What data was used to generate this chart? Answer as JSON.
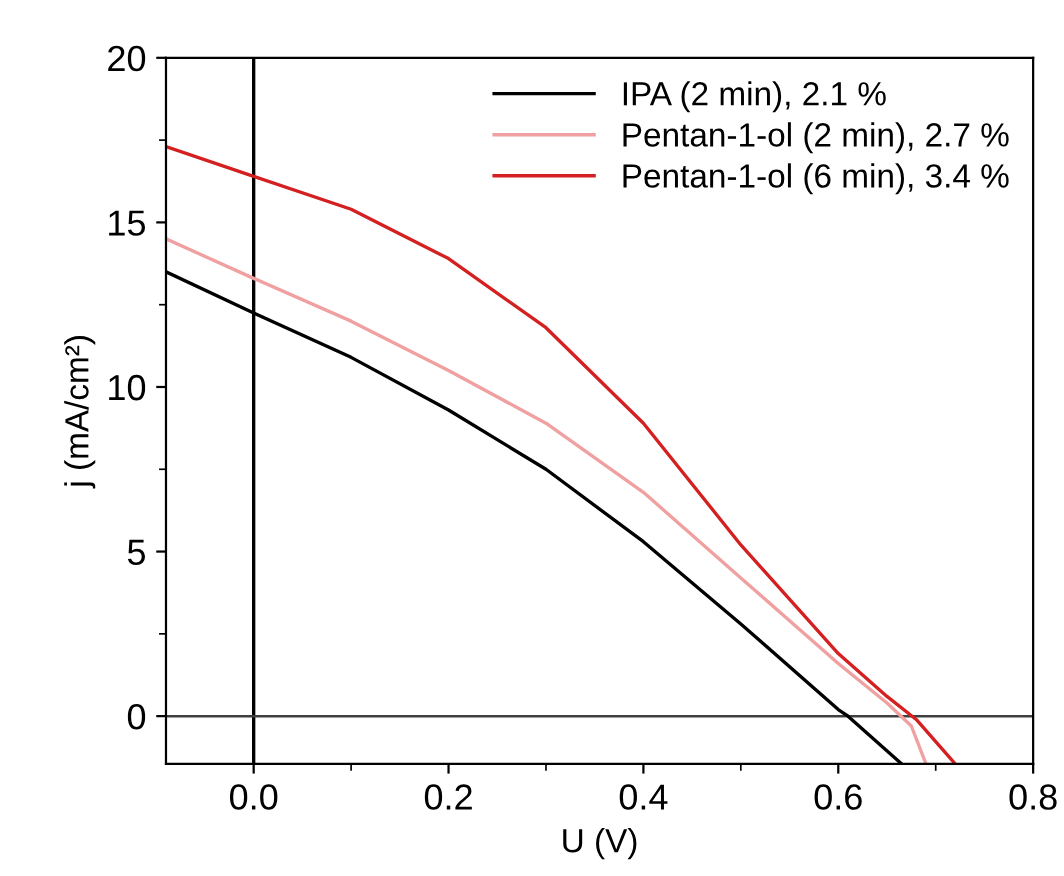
{
  "chart_data": {
    "type": "line",
    "xlabel": "U (V)",
    "ylabel": "j (mA/cm²)",
    "xlim": [
      -0.09,
      0.8
    ],
    "xticks": [
      {
        "value": 0,
        "label": "0.0"
      },
      0.2,
      0.4,
      0.6,
      0.8
    ],
    "ylim": [
      -1.45,
      20
    ],
    "yticks": [
      0,
      5,
      10,
      15,
      20
    ],
    "grid": false,
    "legend": "top right",
    "marker": "none",
    "line_style": "solid",
    "ref_lines": [
      {
        "axis": "x",
        "value": 0,
        "color": "#000000"
      },
      {
        "axis": "y",
        "value": 0,
        "color": "#404040"
      }
    ],
    "series": [
      {
        "name": "IPA (2 min), 2.1 %",
        "color": "#000000",
        "x": [
          -0.09,
          0,
          0.1,
          0.2,
          0.3,
          0.4,
          0.5,
          0.6,
          0.61,
          0.665
        ],
        "values": [
          13.5,
          12.25,
          10.9,
          9.3,
          7.5,
          5.3,
          2.8,
          0.2,
          0,
          -1.45
        ]
      },
      {
        "name": "Pentan-1-ol (2 min), 2.7 %",
        "color": "#f0a0a0",
        "x": [
          -0.09,
          0,
          0.1,
          0.2,
          0.3,
          0.4,
          0.5,
          0.6,
          0.65,
          0.675,
          0.69
        ],
        "values": [
          14.5,
          13.3,
          12.0,
          10.5,
          8.9,
          6.8,
          4.2,
          1.6,
          0.4,
          -0.3,
          -1.45
        ]
      },
      {
        "name": "Pentan-1-ol (6 min), 3.4 %",
        "color": "#d42020",
        "x": [
          -0.09,
          0,
          0.1,
          0.2,
          0.3,
          0.4,
          0.5,
          0.6,
          0.65,
          0.68,
          0.72
        ],
        "values": [
          17.3,
          16.4,
          15.4,
          13.9,
          11.8,
          8.9,
          5.2,
          1.9,
          0.6,
          -0.1,
          -1.45
        ]
      }
    ]
  }
}
